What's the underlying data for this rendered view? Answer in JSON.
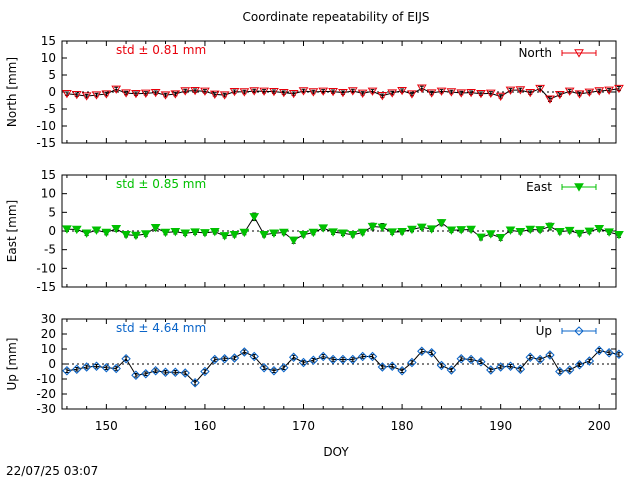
{
  "title": "Coordinate repeatability of EIJS",
  "timestamp": "22/07/25 03:07",
  "chart_data": [
    {
      "type": "line",
      "ylabel": "North [mm]",
      "std_text": "std ± 0.81 mm",
      "legend": "North",
      "color": "#e8000b",
      "marker": "triangle-down-open",
      "ylim": [
        -15,
        15
      ],
      "yticks": [
        -15,
        -10,
        -5,
        0,
        5,
        10,
        15
      ],
      "x": [
        146,
        147,
        148,
        149,
        150,
        151,
        152,
        153,
        154,
        155,
        156,
        157,
        158,
        159,
        160,
        161,
        162,
        163,
        164,
        165,
        166,
        167,
        168,
        169,
        170,
        171,
        172,
        173,
        174,
        175,
        176,
        177,
        178,
        179,
        180,
        181,
        182,
        183,
        184,
        185,
        186,
        187,
        188,
        189,
        190,
        191,
        192,
        193,
        194,
        195,
        196,
        197,
        198,
        199,
        200,
        201,
        202
      ],
      "values": [
        -0.5,
        -0.8,
        -1.2,
        -0.9,
        -0.6,
        0.8,
        -0.3,
        -0.5,
        -0.4,
        -0.2,
        -0.9,
        -0.6,
        0.3,
        0.4,
        0.2,
        -0.7,
        -0.9,
        0.1,
        0.0,
        0.3,
        0.2,
        0.1,
        -0.2,
        -0.5,
        0.3,
        0.0,
        0.2,
        0.1,
        -0.2,
        0.3,
        -0.4,
        0.2,
        -1.1,
        -0.3,
        0.4,
        -0.6,
        1.1,
        -0.3,
        0.2,
        0.0,
        -0.3,
        -0.2,
        -0.5,
        -0.4,
        -1.3,
        0.5,
        0.6,
        -0.2,
        1.0,
        -2.1,
        -0.8,
        0.2,
        -0.6,
        -0.1,
        0.3,
        0.5,
        1.0
      ],
      "errors": [
        0.5,
        0.5,
        0.5,
        0.5,
        0.5,
        0.6,
        0.5,
        0.5,
        0.5,
        0.5,
        0.5,
        0.5,
        0.5,
        0.5,
        0.5,
        0.5,
        0.5,
        0.5,
        0.5,
        0.5,
        0.5,
        0.5,
        0.5,
        0.5,
        0.5,
        0.5,
        0.5,
        0.5,
        0.5,
        0.5,
        0.5,
        0.5,
        0.5,
        0.5,
        0.5,
        0.5,
        0.6,
        0.5,
        0.5,
        0.5,
        0.5,
        0.5,
        0.5,
        0.5,
        0.5,
        0.5,
        0.5,
        0.5,
        0.6,
        0.7,
        0.5,
        0.5,
        0.5,
        0.5,
        0.5,
        0.5,
        0.6
      ]
    },
    {
      "type": "line",
      "ylabel": "East [mm]",
      "std_text": "std ± 0.85 mm",
      "legend": "East",
      "color": "#00c000",
      "marker": "triangle-down-filled",
      "ylim": [
        -15,
        15
      ],
      "yticks": [
        -15,
        -10,
        -5,
        0,
        5,
        10,
        15
      ],
      "x": [
        146,
        147,
        148,
        149,
        150,
        151,
        152,
        153,
        154,
        155,
        156,
        157,
        158,
        159,
        160,
        161,
        162,
        163,
        164,
        165,
        166,
        167,
        168,
        169,
        170,
        171,
        172,
        173,
        174,
        175,
        176,
        177,
        178,
        179,
        180,
        181,
        182,
        183,
        184,
        185,
        186,
        187,
        188,
        189,
        190,
        191,
        192,
        193,
        194,
        195,
        196,
        197,
        198,
        199,
        200,
        201,
        202
      ],
      "values": [
        0.5,
        0.4,
        -0.6,
        0.2,
        -0.4,
        0.6,
        -1.0,
        -1.2,
        -0.8,
        0.9,
        -0.4,
        -0.2,
        -0.6,
        -0.3,
        -0.5,
        -0.2,
        -1.3,
        -1.0,
        -0.4,
        3.8,
        -1.0,
        -0.6,
        -0.4,
        -2.5,
        -1.0,
        -0.4,
        0.8,
        -0.3,
        -0.6,
        -1.0,
        -0.4,
        1.2,
        1.0,
        -0.3,
        -0.2,
        0.4,
        1.0,
        0.5,
        2.2,
        0.2,
        0.3,
        0.4,
        -1.7,
        -0.8,
        -1.8,
        0.2,
        -0.2,
        0.4,
        0.3,
        1.2,
        -0.2,
        0.1,
        -0.7,
        -0.1,
        0.6,
        -0.3,
        -1.0
      ],
      "errors": [
        0.6,
        0.5,
        0.6,
        0.5,
        0.6,
        0.7,
        0.6,
        0.6,
        0.6,
        0.8,
        0.6,
        0.6,
        0.6,
        0.6,
        0.6,
        0.6,
        0.6,
        0.6,
        0.6,
        1.0,
        0.6,
        0.6,
        0.6,
        0.8,
        0.6,
        0.6,
        0.7,
        0.6,
        0.6,
        0.6,
        0.6,
        0.9,
        1.0,
        0.6,
        0.6,
        0.6,
        0.6,
        0.6,
        0.8,
        0.6,
        0.6,
        0.6,
        0.7,
        0.6,
        0.7,
        0.6,
        0.6,
        0.6,
        0.6,
        0.9,
        0.6,
        0.6,
        0.6,
        0.6,
        0.6,
        0.6,
        0.7
      ]
    },
    {
      "type": "line",
      "ylabel": "Up [mm]",
      "std_text": "std ± 4.64 mm",
      "legend": "Up",
      "color": "#0a64c8",
      "marker": "diamond-open",
      "ylim": [
        -30,
        30
      ],
      "yticks": [
        -30,
        -20,
        -10,
        0,
        10,
        20,
        30
      ],
      "x": [
        146,
        147,
        148,
        149,
        150,
        151,
        152,
        153,
        154,
        155,
        156,
        157,
        158,
        159,
        160,
        161,
        162,
        163,
        164,
        165,
        166,
        167,
        168,
        169,
        170,
        171,
        172,
        173,
        174,
        175,
        176,
        177,
        178,
        179,
        180,
        181,
        182,
        183,
        184,
        185,
        186,
        187,
        188,
        189,
        190,
        191,
        192,
        193,
        194,
        195,
        196,
        197,
        198,
        199,
        200,
        201,
        202
      ],
      "values": [
        -4.5,
        -3.5,
        -2.0,
        -1.5,
        -2.5,
        -3.0,
        3.5,
        -7.5,
        -6.5,
        -4.5,
        -5.5,
        -5.5,
        -6.0,
        -12.5,
        -5.0,
        3.0,
        3.5,
        4.0,
        8.0,
        5.0,
        -2.5,
        -4.5,
        -2.5,
        4.5,
        1.0,
        2.5,
        5.0,
        3.0,
        3.0,
        3.0,
        5.0,
        5.0,
        -2.0,
        -1.5,
        -4.5,
        1.0,
        8.5,
        7.5,
        -1.0,
        -4.0,
        3.5,
        3.0,
        1.5,
        -4.0,
        -2.0,
        -1.5,
        -3.5,
        4.5,
        3.0,
        6.0,
        -5.0,
        -4.0,
        -0.5,
        2.0,
        9.0,
        7.5,
        6.5
      ],
      "errors": [
        1.2,
        1.2,
        1.2,
        1.2,
        1.2,
        1.2,
        1.3,
        1.2,
        1.2,
        1.2,
        1.2,
        1.2,
        1.2,
        1.5,
        1.2,
        1.2,
        1.2,
        1.2,
        1.3,
        1.3,
        1.2,
        1.2,
        1.2,
        1.3,
        1.2,
        1.2,
        1.3,
        1.2,
        1.2,
        1.2,
        1.2,
        1.2,
        1.2,
        1.2,
        1.2,
        1.2,
        1.3,
        1.3,
        1.2,
        1.2,
        1.2,
        1.2,
        1.2,
        1.2,
        1.2,
        1.2,
        1.2,
        1.3,
        1.2,
        1.3,
        1.2,
        1.2,
        1.2,
        1.2,
        1.3,
        1.2,
        1.3
      ]
    }
  ],
  "x_axis": {
    "label": "DOY",
    "xlim": [
      145.5,
      201.7
    ],
    "ticks": [
      150,
      160,
      170,
      180,
      190,
      200
    ]
  }
}
